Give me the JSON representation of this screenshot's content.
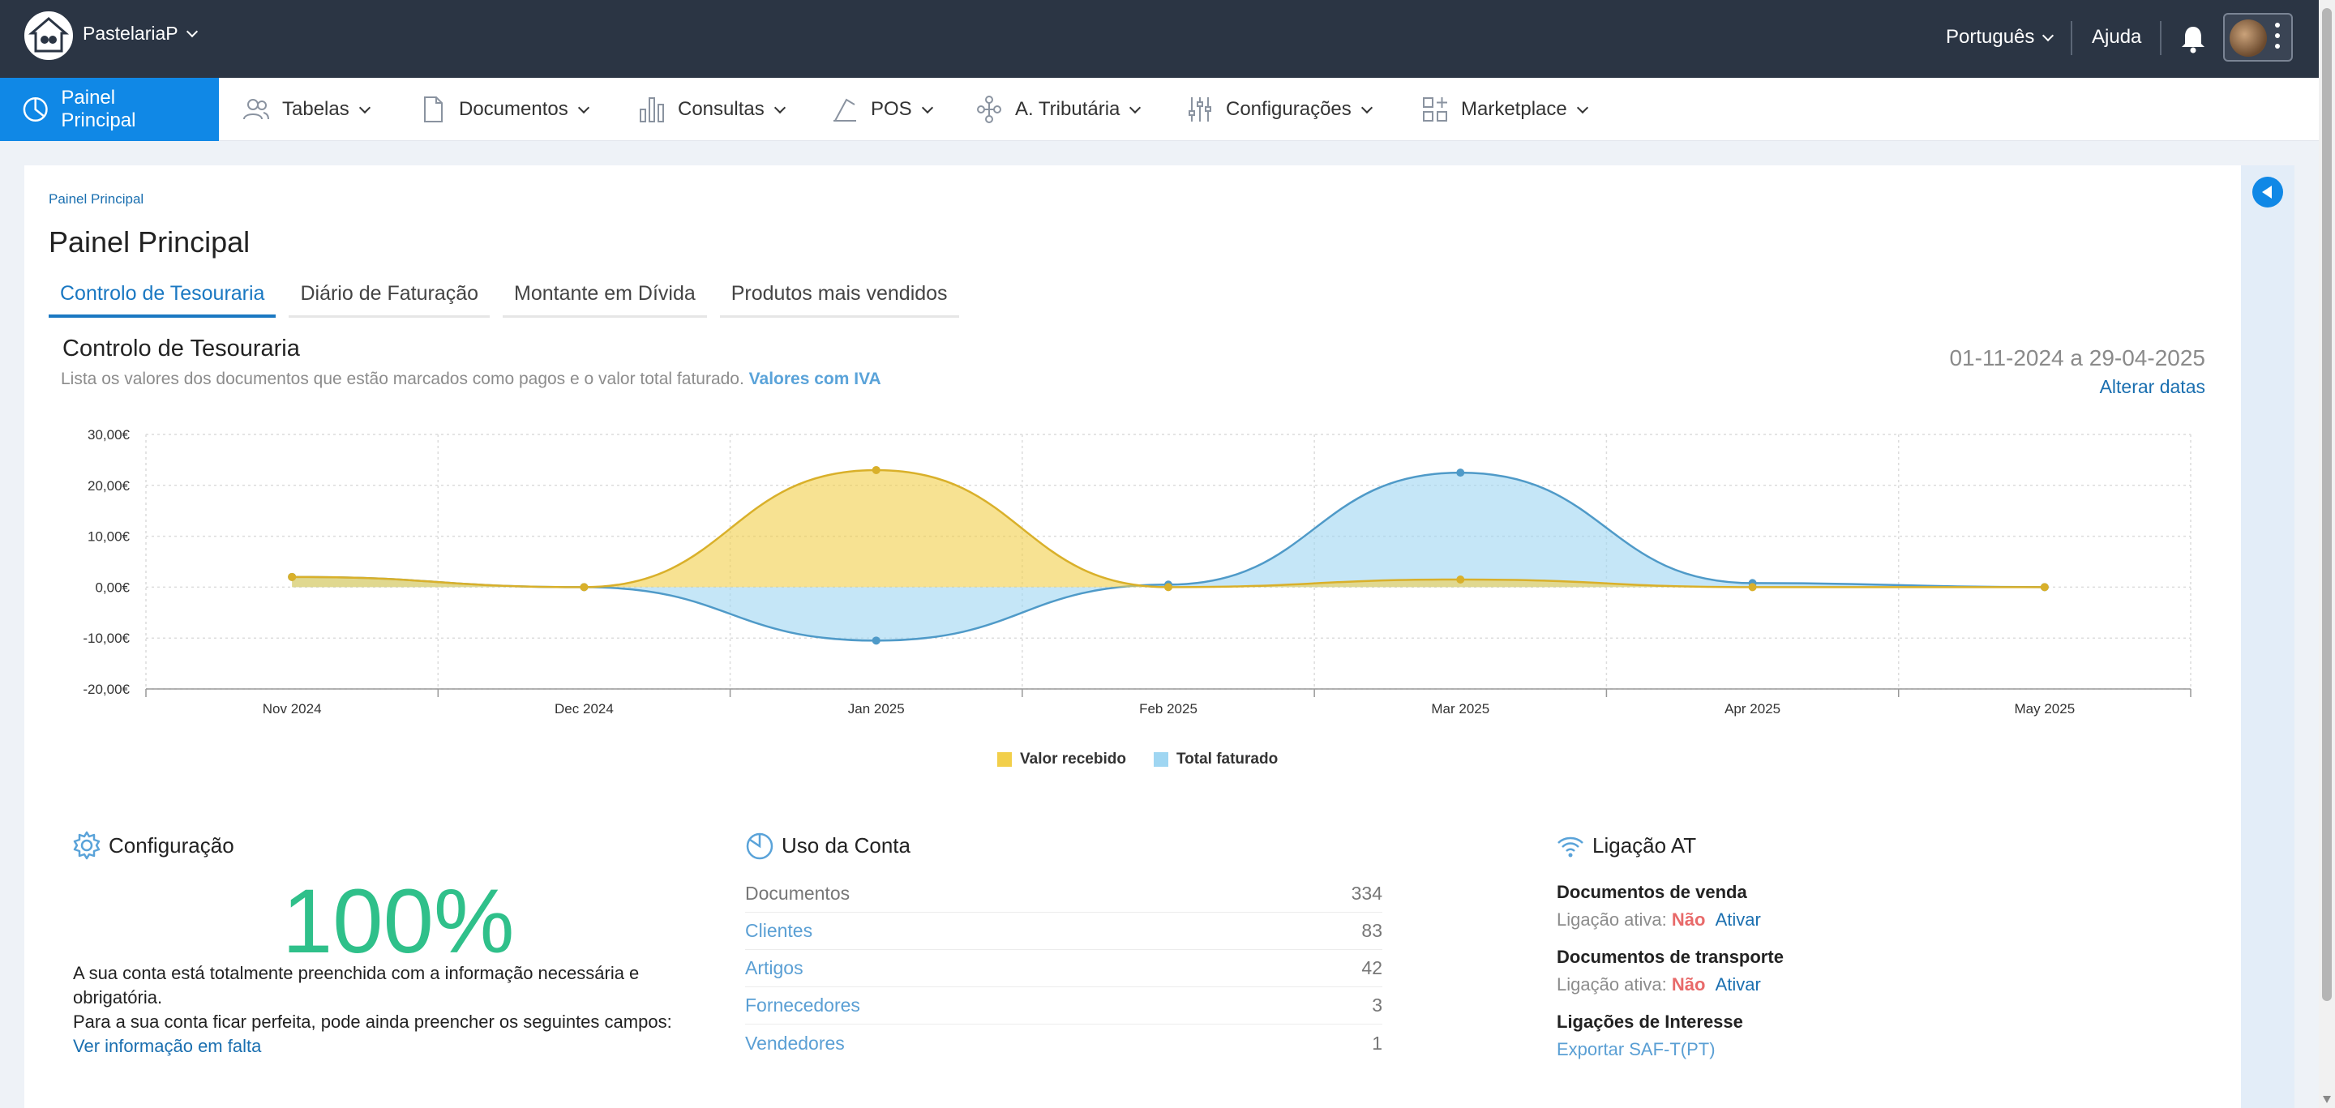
{
  "header": {
    "company": "PastelariaP",
    "language": "Português",
    "help": "Ajuda"
  },
  "nav": [
    {
      "label": "Painel Principal",
      "icon": "dashboard-icon"
    },
    {
      "label": "Tabelas",
      "icon": "users-icon"
    },
    {
      "label": "Documentos",
      "icon": "document-icon"
    },
    {
      "label": "Consultas",
      "icon": "bar-chart-icon"
    },
    {
      "label": "POS",
      "icon": "pos-icon"
    },
    {
      "label": "A. Tributária",
      "icon": "network-icon"
    },
    {
      "label": "Configurações",
      "icon": "sliders-icon"
    },
    {
      "label": "Marketplace",
      "icon": "grid-plus-icon"
    }
  ],
  "breadcrumb": "Painel Principal",
  "page_title": "Painel Principal",
  "tabs": [
    "Controlo de Tesouraria",
    "Diário de Faturação",
    "Montante em Dívida",
    "Produtos mais vendidos"
  ],
  "treasury": {
    "title": "Controlo de Tesouraria",
    "description": "Lista os valores dos documentos que estão marcados como pagos e o valor total faturado.",
    "vat_note": "Valores com IVA",
    "date_range": "01-11-2024 a 29-04-2025",
    "change_dates": "Alterar datas"
  },
  "chart_data": {
    "type": "area",
    "categories": [
      "Nov 2024",
      "Dec 2024",
      "Jan 2025",
      "Feb 2025",
      "Mar 2025",
      "Apr 2025",
      "May 2025"
    ],
    "y_ticks": [
      "30,00€",
      "20,00€",
      "10,00€",
      "0,00€",
      "-10,00€",
      "-20,00€"
    ],
    "ylim": [
      -20,
      30
    ],
    "grid": true,
    "legend_position": "bottom",
    "series": [
      {
        "name": "Valor recebido",
        "color": "#f2cf4a",
        "values": [
          2,
          0,
          23,
          0,
          1.5,
          0,
          0
        ]
      },
      {
        "name": "Total faturado",
        "color": "#9fd6f2",
        "values": [
          2,
          0,
          -10.5,
          0.5,
          22.5,
          0.8,
          0
        ]
      }
    ]
  },
  "config_panel": {
    "title": "Configuração",
    "percent": "100%",
    "text1": "A sua conta está totalmente preenchida com a informação necessária e obrigatória.",
    "text2": "Para a sua conta ficar perfeita, pode ainda preencher os seguintes campos:",
    "link": "Ver informação em falta"
  },
  "account_usage": {
    "title": "Uso da Conta",
    "rows": [
      {
        "label": "Documentos",
        "value": "334"
      },
      {
        "label": "Clientes",
        "value": "83"
      },
      {
        "label": "Artigos",
        "value": "42"
      },
      {
        "label": "Fornecedores",
        "value": "3"
      },
      {
        "label": "Vendedores",
        "value": "1"
      }
    ]
  },
  "at_connection": {
    "title": "Ligação AT",
    "sales_docs": "Documentos de venda",
    "transport_docs": "Documentos de transporte",
    "active_label": "Ligação ativa:",
    "no": "Não",
    "activate": "Ativar",
    "interest_links": "Ligações de Interesse",
    "saft": "Exportar SAF-T(PT)"
  }
}
